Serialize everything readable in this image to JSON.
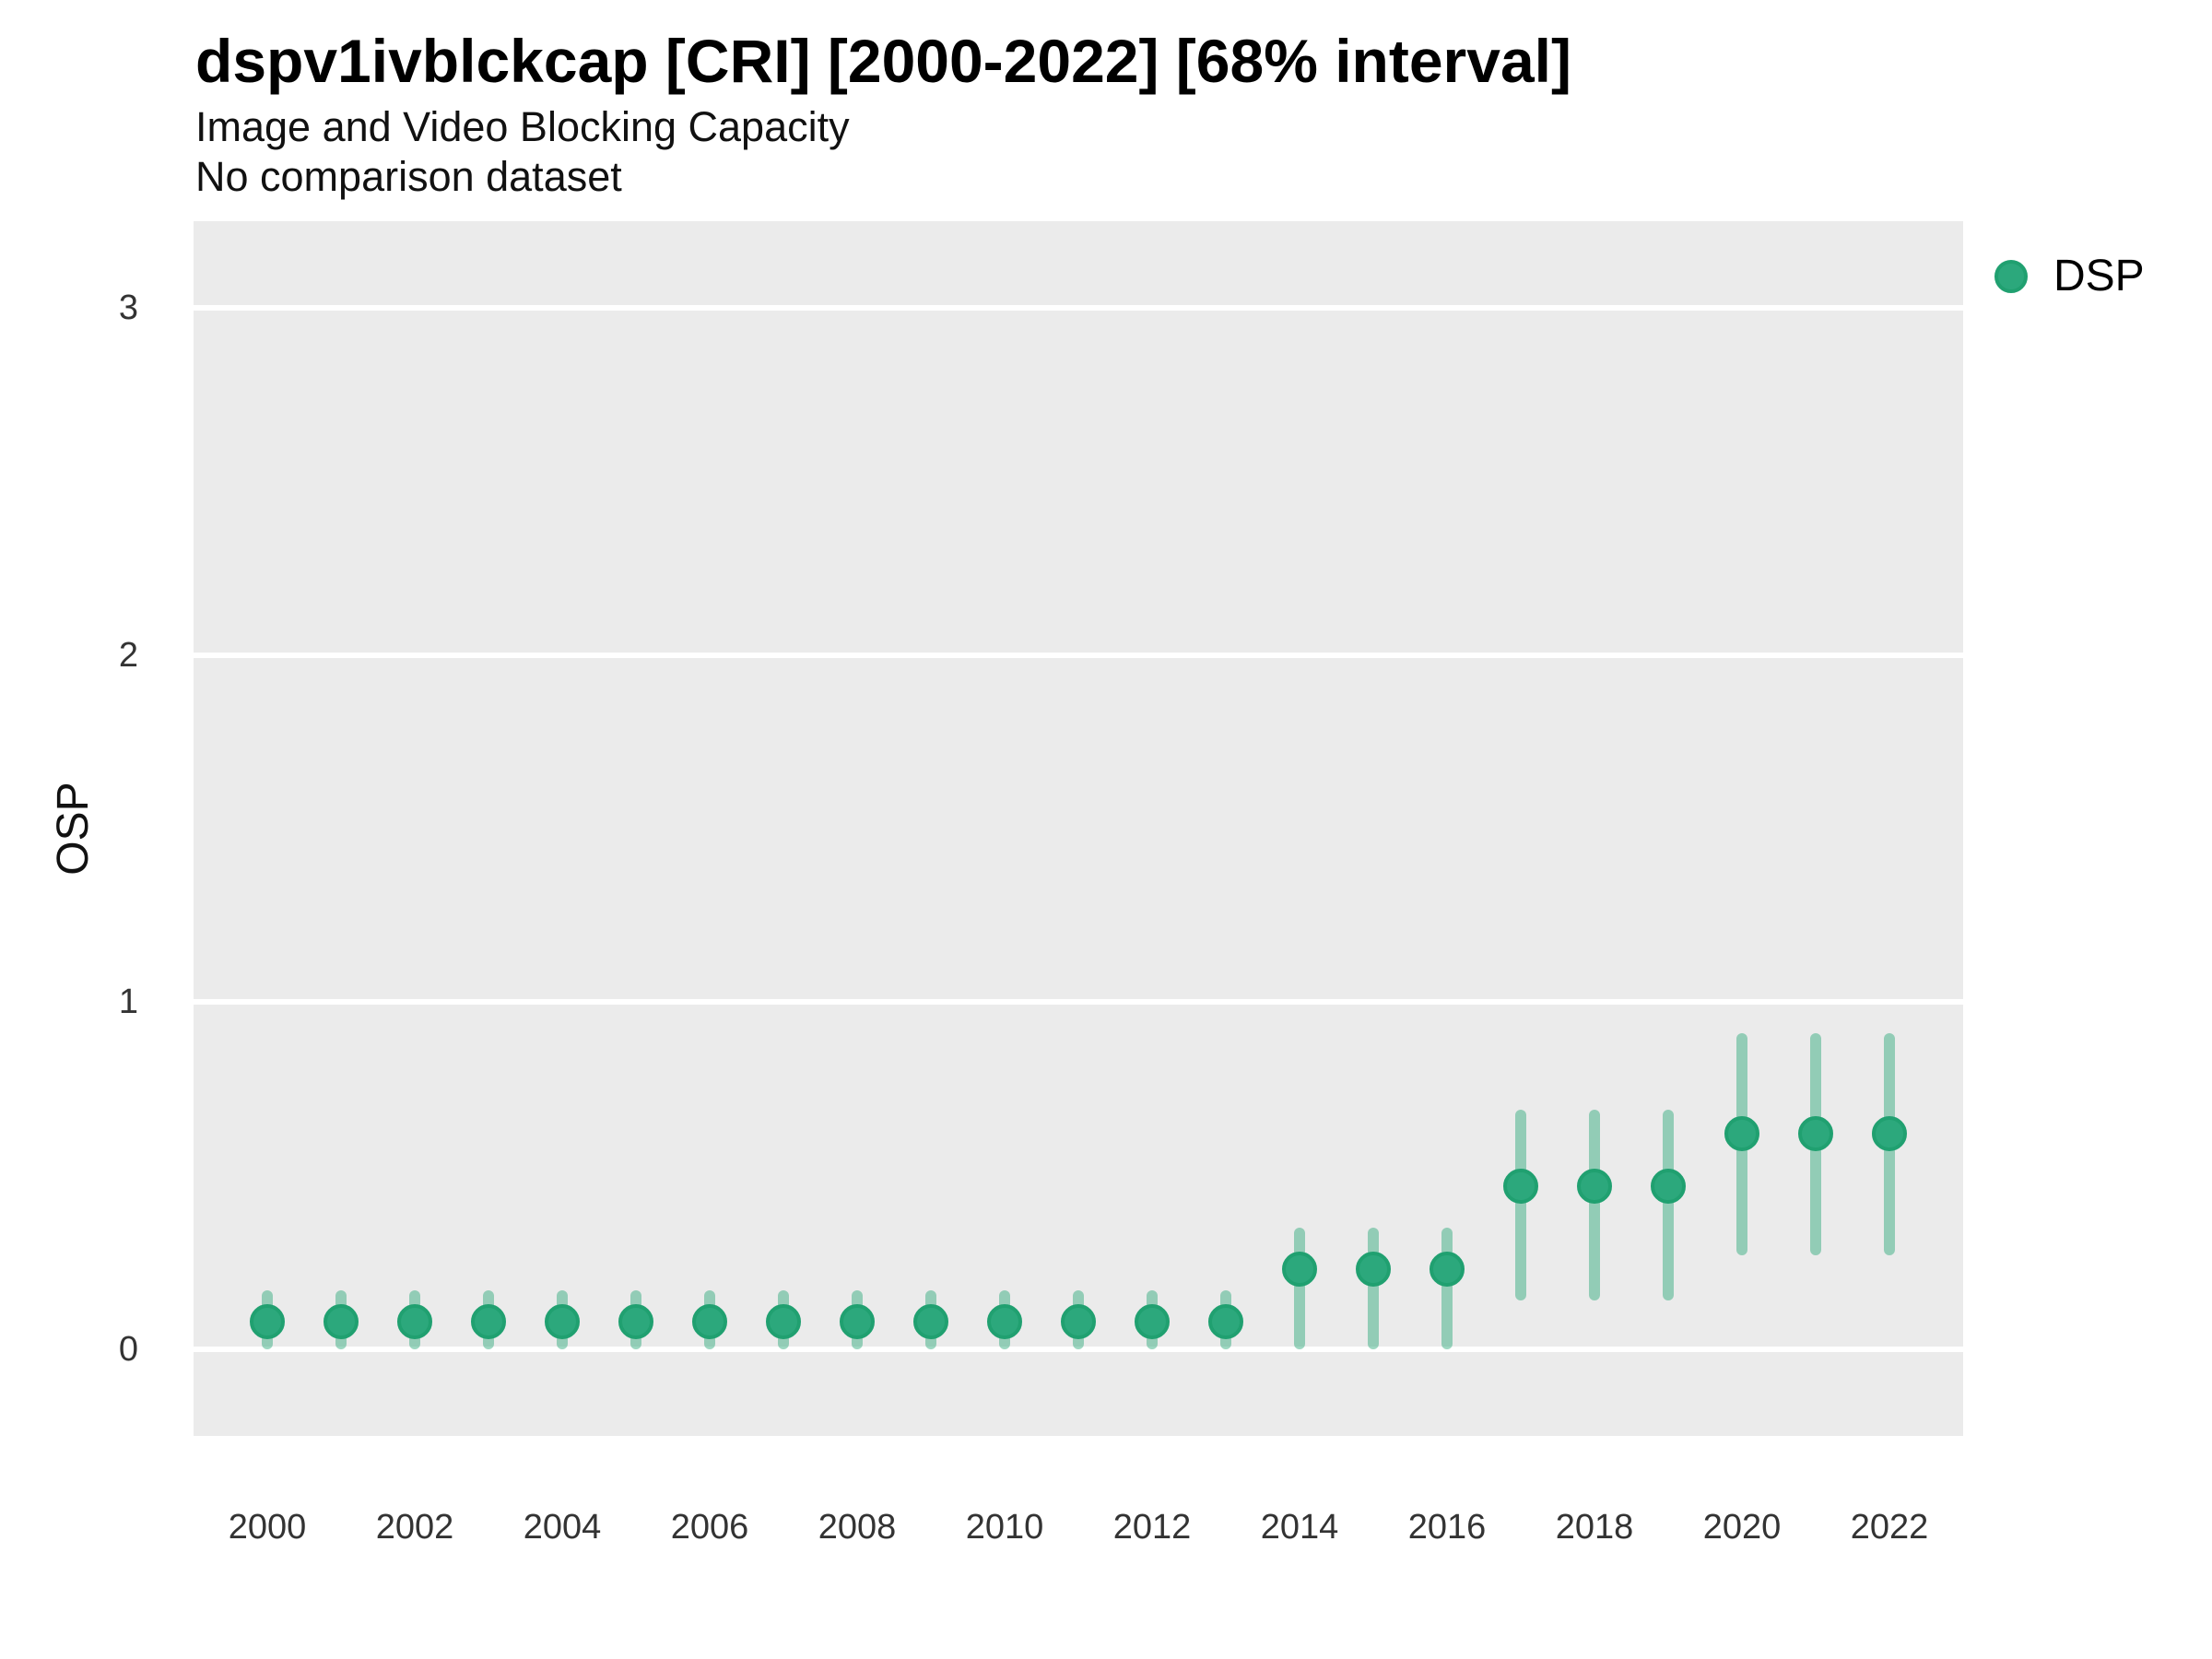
{
  "header": {
    "title": "dspv1ivblckcap [CRI] [2000-2022] [68% interval]",
    "subtitle": "Image and Video Blocking Capacity",
    "caption": "No comparison dataset"
  },
  "colors": {
    "panel_background": "#ebebeb",
    "gridline": "#ffffff",
    "point_fill": "#2ca87c",
    "point_stroke": "#20a070",
    "interval_bar": "rgba(42,168,120,0.46)",
    "text": "#111111",
    "tick_text": "#333333"
  },
  "legend": {
    "position": "right",
    "items": [
      {
        "label": "DSP",
        "color": "#2ca87c"
      }
    ]
  },
  "chart_data": {
    "type": "scatter",
    "title": "dspv1ivblckcap [CRI] [2000-2022] [68% interval]",
    "subtitle": "Image and Video Blocking Capacity",
    "caption": "No comparison dataset",
    "xlabel": "",
    "ylabel": "OSP",
    "interval": "68%",
    "grid": "major horizontal white lines on grey panel",
    "legend_position": "right",
    "xlim": [
      1999,
      2023
    ],
    "ylim": [
      -0.25,
      3.25
    ],
    "x_ticks": [
      2000,
      2002,
      2004,
      2006,
      2008,
      2010,
      2012,
      2014,
      2016,
      2018,
      2020,
      2022
    ],
    "y_ticks": [
      0,
      1,
      2,
      3
    ],
    "series": [
      {
        "name": "DSP",
        "x": [
          2000,
          2001,
          2002,
          2003,
          2004,
          2005,
          2006,
          2007,
          2008,
          2009,
          2010,
          2011,
          2012,
          2013,
          2014,
          2015,
          2016,
          2017,
          2018,
          2019,
          2020,
          2021,
          2022
        ],
        "y": [
          0.08,
          0.08,
          0.08,
          0.08,
          0.08,
          0.08,
          0.08,
          0.08,
          0.08,
          0.08,
          0.08,
          0.08,
          0.08,
          0.08,
          0.23,
          0.23,
          0.23,
          0.47,
          0.47,
          0.47,
          0.62,
          0.62,
          0.62
        ],
        "lo": [
          0.0,
          0.0,
          0.0,
          0.0,
          0.0,
          0.0,
          0.0,
          0.0,
          0.0,
          0.0,
          0.0,
          0.0,
          0.0,
          0.0,
          0.0,
          0.0,
          0.0,
          0.14,
          0.14,
          0.14,
          0.27,
          0.27,
          0.27
        ],
        "hi": [
          0.17,
          0.17,
          0.17,
          0.17,
          0.17,
          0.17,
          0.17,
          0.17,
          0.17,
          0.17,
          0.17,
          0.17,
          0.17,
          0.17,
          0.35,
          0.35,
          0.35,
          0.69,
          0.69,
          0.69,
          0.91,
          0.91,
          0.91
        ]
      }
    ]
  }
}
